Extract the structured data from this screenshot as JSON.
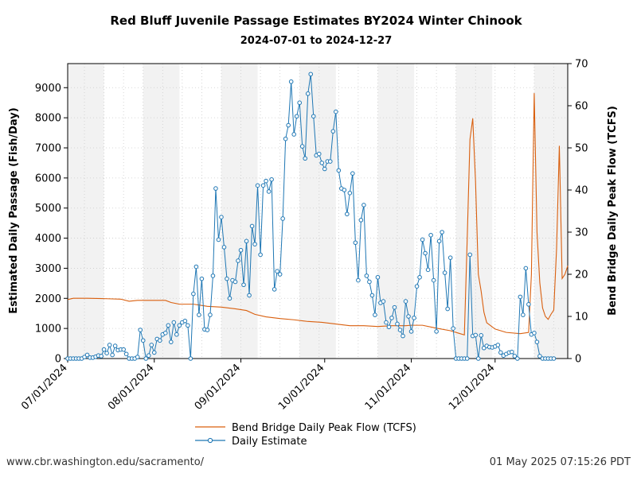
{
  "page": {
    "source_url": "www.cbr.washington.edu/sacramento/",
    "timestamp": "01 May 2025 07:15:26 PDT"
  },
  "chart_data": {
    "type": "line",
    "title": "Red Bluff Juvenile Passage Estimates BY2024 Winter Chinook",
    "subtitle": "2024-07-01 to 2024-12-27",
    "ylabel": "Estimated Daily Passage (Fish/Day)",
    "y2label": "Bend Bridge Daily Peak Flow (TCFS)",
    "x_start": "2024-07-01",
    "x_end": "2024-12-27",
    "ylim": [
      0,
      9800
    ],
    "y2lim": [
      0,
      70
    ],
    "yticks": [
      0,
      1000,
      2000,
      3000,
      4000,
      5000,
      6000,
      7000,
      8000,
      9000
    ],
    "y2ticks": [
      0,
      10,
      20,
      30,
      40,
      50,
      60,
      70
    ],
    "xtick_labels": [
      "07/01/2024",
      "08/01/2024",
      "09/01/2024",
      "10/01/2024",
      "11/01/2024",
      "12/01/2024"
    ],
    "xtick_dates": [
      "2024-07-01",
      "2024-08-01",
      "2024-09-01",
      "2024-10-01",
      "2024-11-01",
      "2024-12-01"
    ],
    "grid": true,
    "legend_position": "bottom-center",
    "colors": {
      "flow": "#d95f0e",
      "estimate": "#1f77b4",
      "shade": "#f2f2f2"
    },
    "shaded_periods": [
      [
        "2024-07-01",
        "2024-07-14"
      ],
      [
        "2024-07-28",
        "2024-08-10"
      ],
      [
        "2024-08-25",
        "2024-09-07"
      ],
      [
        "2024-09-22",
        "2024-10-05"
      ],
      [
        "2024-10-20",
        "2024-11-02"
      ],
      [
        "2024-11-17",
        "2024-11-30"
      ],
      [
        "2024-12-15",
        "2024-12-27"
      ]
    ],
    "series": [
      {
        "name": "Bend Bridge Daily Peak Flow (TCFS)",
        "axis": "right",
        "style": "line",
        "points": [
          [
            "2024-07-01",
            14.0
          ],
          [
            "2024-07-03",
            14.3
          ],
          [
            "2024-07-08",
            14.3
          ],
          [
            "2024-07-15",
            14.2
          ],
          [
            "2024-07-20",
            14.1
          ],
          [
            "2024-07-23",
            13.6
          ],
          [
            "2024-07-26",
            13.8
          ],
          [
            "2024-08-01",
            13.8
          ],
          [
            "2024-08-05",
            13.8
          ],
          [
            "2024-08-07",
            13.3
          ],
          [
            "2024-08-10",
            12.9
          ],
          [
            "2024-08-15",
            12.9
          ],
          [
            "2024-08-20",
            12.4
          ],
          [
            "2024-08-25",
            12.2
          ],
          [
            "2024-08-30",
            11.8
          ],
          [
            "2024-09-03",
            11.4
          ],
          [
            "2024-09-06",
            10.5
          ],
          [
            "2024-09-10",
            9.9
          ],
          [
            "2024-09-15",
            9.5
          ],
          [
            "2024-09-20",
            9.2
          ],
          [
            "2024-09-25",
            8.8
          ],
          [
            "2024-09-30",
            8.6
          ],
          [
            "2024-10-05",
            8.2
          ],
          [
            "2024-10-10",
            7.8
          ],
          [
            "2024-10-15",
            7.8
          ],
          [
            "2024-10-20",
            7.6
          ],
          [
            "2024-10-25",
            7.8
          ],
          [
            "2024-10-30",
            7.8
          ],
          [
            "2024-11-01",
            7.9
          ],
          [
            "2024-11-05",
            7.9
          ],
          [
            "2024-11-10",
            7.2
          ],
          [
            "2024-11-15",
            6.6
          ],
          [
            "2024-11-18",
            6.0
          ],
          [
            "2024-11-20",
            5.6
          ],
          [
            "2024-11-21",
            28.0
          ],
          [
            "2024-11-22",
            52.0
          ],
          [
            "2024-11-23",
            57.0
          ],
          [
            "2024-11-24",
            42.0
          ],
          [
            "2024-11-25",
            20.0
          ],
          [
            "2024-11-26",
            16.0
          ],
          [
            "2024-11-27",
            11.0
          ],
          [
            "2024-11-28",
            8.5
          ],
          [
            "2024-12-01",
            7.0
          ],
          [
            "2024-12-05",
            6.2
          ],
          [
            "2024-12-10",
            5.9
          ],
          [
            "2024-12-13",
            6.2
          ],
          [
            "2024-12-14",
            20.0
          ],
          [
            "2024-12-15",
            63.0
          ],
          [
            "2024-12-16",
            30.0
          ],
          [
            "2024-12-17",
            18.0
          ],
          [
            "2024-12-18",
            12.0
          ],
          [
            "2024-12-19",
            10.0
          ],
          [
            "2024-12-20",
            9.3
          ],
          [
            "2024-12-21",
            10.5
          ],
          [
            "2024-12-22",
            11.5
          ],
          [
            "2024-12-23",
            26.0
          ],
          [
            "2024-12-24",
            50.5
          ],
          [
            "2024-12-25",
            19.0
          ],
          [
            "2024-12-26",
            20.0
          ],
          [
            "2024-12-27",
            22.0
          ]
        ]
      },
      {
        "name": "Daily Estimate",
        "axis": "left",
        "style": "line-circle-markers",
        "values": [
          0,
          0,
          0,
          0,
          0,
          0,
          50,
          120,
          30,
          30,
          60,
          100,
          80,
          300,
          180,
          450,
          120,
          420,
          280,
          300,
          300,
          150,
          0,
          0,
          0,
          50,
          950,
          600,
          0,
          100,
          450,
          200,
          650,
          600,
          800,
          850,
          1100,
          550,
          1200,
          800,
          1100,
          1200,
          1250,
          1100,
          0,
          2150,
          3050,
          1450,
          2650,
          970,
          950,
          1450,
          2750,
          5650,
          3950,
          4700,
          3700,
          2650,
          2000,
          2600,
          2550,
          3250,
          3600,
          2450,
          3900,
          2100,
          4400,
          3800,
          5750,
          3450,
          5750,
          5900,
          5550,
          5950,
          2300,
          2900,
          2800,
          4650,
          7300,
          7750,
          9200,
          7450,
          8050,
          8500,
          7050,
          6650,
          8800,
          9450,
          8050,
          6750,
          6800,
          6500,
          6300,
          6550,
          6550,
          7550,
          8200,
          6250,
          5650,
          5600,
          4800,
          5500,
          6150,
          3850,
          2600,
          4600,
          5100,
          2750,
          2550,
          2100,
          1450,
          2700,
          1850,
          1900,
          1200,
          1050,
          1350,
          1700,
          1150,
          950,
          750,
          1900,
          1400,
          900,
          1350,
          2400,
          2700,
          3950,
          3500,
          2950,
          4100,
          2600,
          900,
          3900,
          4200,
          2850,
          1650,
          3350,
          1000,
          0,
          0,
          0,
          0,
          0,
          3450,
          750,
          780,
          0,
          770,
          350,
          420,
          380,
          370,
          400,
          450,
          200,
          100,
          150,
          200,
          220,
          80,
          0,
          2050,
          1450,
          3000,
          1800,
          800,
          850,
          550,
          80,
          0,
          0,
          0,
          0,
          0
        ]
      }
    ]
  }
}
